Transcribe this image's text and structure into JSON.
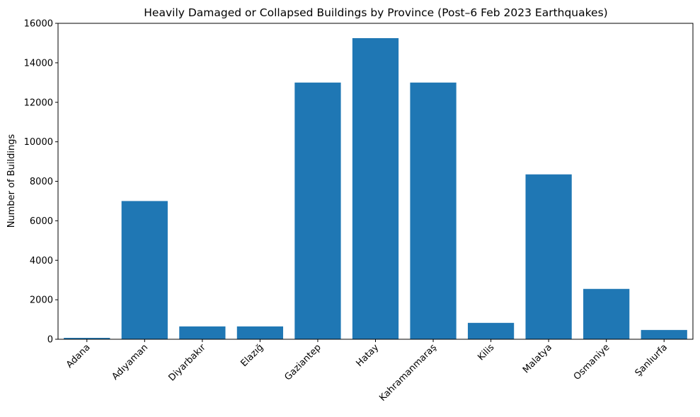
{
  "chart_data": {
    "type": "bar",
    "title": "Heavily Damaged or Collapsed Buildings by Province (Post–6 Feb 2023 Earthquakes)",
    "xlabel": "",
    "ylabel": "Number of Buildings",
    "ylim": [
      0,
      16000
    ],
    "yticks": [
      0,
      2000,
      4000,
      6000,
      8000,
      10000,
      12000,
      14000,
      16000
    ],
    "categories": [
      "Adana",
      "Adıyaman",
      "Diyarbakır",
      "Elazığ",
      "Gaziantep",
      "Hatay",
      "Kahramanmaraş",
      "Kilis",
      "Malatya",
      "Osmaniye",
      "Şanlıurfa"
    ],
    "values": [
      70,
      7000,
      650,
      650,
      13000,
      15250,
      13000,
      830,
      8350,
      2550,
      470
    ],
    "bar_color": "#1f77b4",
    "grid": false,
    "legend": "none"
  }
}
